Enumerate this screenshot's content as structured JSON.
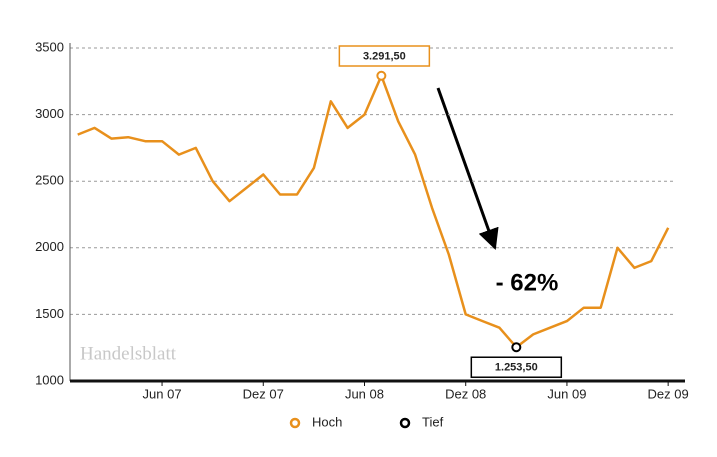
{
  "chart_data": {
    "type": "line",
    "categories": [
      null,
      null,
      null,
      null,
      null,
      "Jun 07",
      null,
      null,
      null,
      null,
      null,
      "Dez 07",
      null,
      null,
      null,
      null,
      null,
      "Jun 08",
      null,
      null,
      null,
      null,
      null,
      "Dez 08",
      null,
      null,
      null,
      null,
      null,
      "Jun 09",
      null,
      null,
      null,
      null,
      null,
      "Dez 09"
    ],
    "values": [
      2850,
      2900,
      2820,
      2830,
      2800,
      2800,
      2700,
      2750,
      2500,
      2350,
      2450,
      2550,
      2400,
      2400,
      2600,
      3100,
      2900,
      3000,
      3291.5,
      2950,
      2700,
      2300,
      1950,
      1500,
      1450,
      1400,
      1253.5,
      1350,
      1400,
      1450,
      1550,
      1550,
      2000,
      1850,
      1900,
      2150
    ],
    "value_labels": [
      null,
      null,
      null,
      null,
      null,
      null,
      null,
      null,
      null,
      null,
      null,
      null,
      null,
      null,
      null,
      null,
      null,
      null,
      "3.291,50",
      null,
      null,
      null,
      null,
      null,
      null,
      null,
      "1.253,50",
      null,
      null,
      null,
      null,
      null,
      null,
      null,
      null,
      null
    ],
    "color": "#e8901c",
    "ylim": [
      1000,
      3500
    ],
    "yticks": [
      1000,
      1500,
      2000,
      2500,
      3000,
      3500
    ],
    "grid": true,
    "annotation": "- 62%",
    "watermark": "Handelsblatt",
    "legend": [
      {
        "name": "Hoch",
        "color": "#e8901c"
      },
      {
        "name": "Tief",
        "color": "#000000"
      }
    ]
  }
}
